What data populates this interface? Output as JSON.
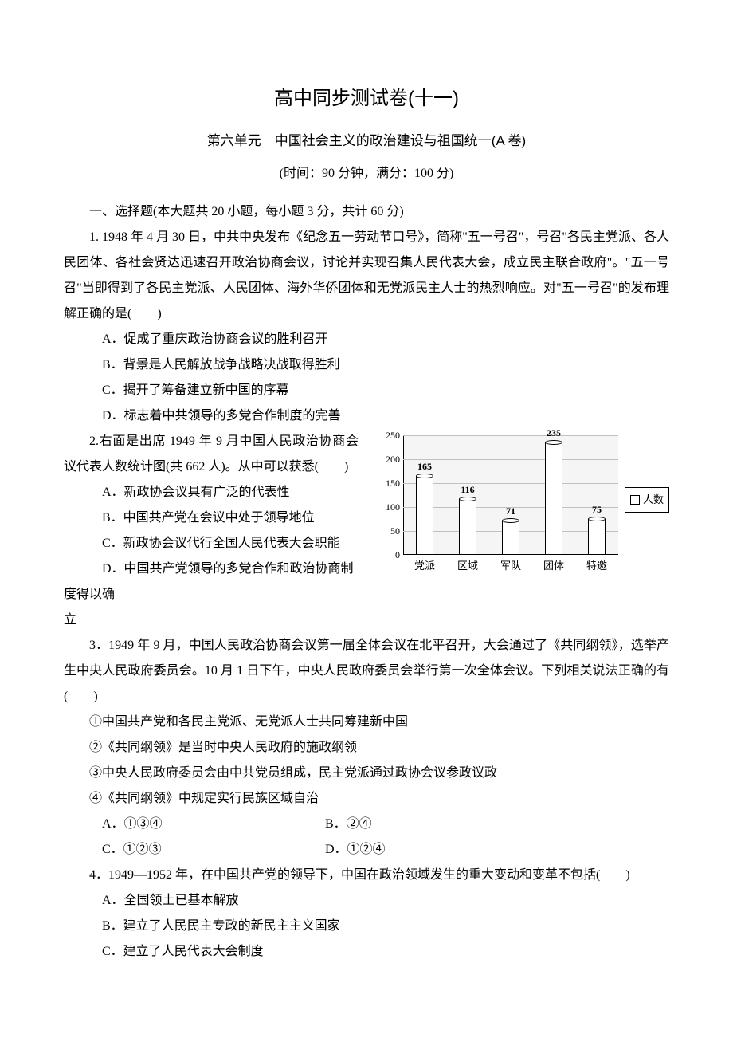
{
  "title": "高中同步测试卷(十一)",
  "subtitle": "第六单元　中国社会主义的政治建设与祖国统一(A 卷)",
  "time_info": "(时间：90 分钟，满分：100 分)",
  "section1_header": "一、选择题(本大题共 20 小题，每小题 3 分，共计 60 分)",
  "q1": {
    "text": "1. 1948 年 4 月 30 日，中共中央发布《纪念五一劳动节口号》，简称\"五一号召\"，号召\"各民主党派、各人民团体、各社会贤达迅速召开政治协商会议，讨论并实现召集人民代表大会，成立民主联合政府\"。\"五一号召\"当即得到了各民主党派、人民团体、海外华侨团体和无党派民主人士的热烈响应。对\"五一号召\"的发布理解正确的是(　　)",
    "a": "A．促成了重庆政治协商会议的胜利召开",
    "b": "B．背景是人民解放战争战略决战取得胜利",
    "c": "C．揭开了筹备建立新中国的序幕",
    "d": "D．标志着中共领导的多党合作制度的完善"
  },
  "q2": {
    "text": "2.右面是出席 1949 年 9 月中国人民政治协商会议代表人数统计图(共 662 人)。从中可以获悉(　　)",
    "a": "A．新政协会议具有广泛的代表性",
    "b": "B．中国共产党在会议中处于领导地位",
    "c": "C．新政协会议代行全国人民代表大会职能",
    "d": "D．中国共产党领导的多党合作和政治协商制度得以确",
    "d_cont": "立"
  },
  "chart": {
    "type": "bar",
    "categories": [
      "党派",
      "区域",
      "军队",
      "团体",
      "特邀"
    ],
    "values": [
      165,
      116,
      71,
      235,
      75
    ],
    "ylim": [
      0,
      250
    ],
    "ytick_step": 50,
    "yticks": [
      "0",
      "50",
      "100",
      "150",
      "200",
      "250"
    ],
    "bar_fill": "#ffffff",
    "bar_border": "#000000",
    "plot_bg": "#f5f5f5",
    "grid_color": "#c0c0c0",
    "legend_label": "人数",
    "value_labels": [
      "165",
      "116",
      "71",
      "235",
      "75"
    ]
  },
  "q3": {
    "text": "3．1949 年 9 月，中国人民政治协商会议第一届全体会议在北平召开，大会通过了《共同纲领》，选举产生中央人民政府委员会。10 月 1 日下午，中央人民政府委员会举行第一次全体会议。下列相关说法正确的有(　　)",
    "i1": "①中国共产党和各民主党派、无党派人士共同筹建新中国",
    "i2": "②《共同纲领》是当时中央人民政府的施政纲领",
    "i3": "③中央人民政府委员会由中共党员组成，民主党派通过政协会议参政议政",
    "i4": "④《共同纲领》中规定实行民族区域自治",
    "a": "A．①③④",
    "b": "B．②④",
    "c": "C．①②③",
    "d": "D．①②④"
  },
  "q4": {
    "text": "4．1949—1952 年，在中国共产党的领导下，中国在政治领域发生的重大变动和变革不包括(　　)",
    "a": "A．全国领土已基本解放",
    "b": "B．建立了人民民主专政的新民主主义国家",
    "c": "C．建立了人民代表大会制度"
  }
}
